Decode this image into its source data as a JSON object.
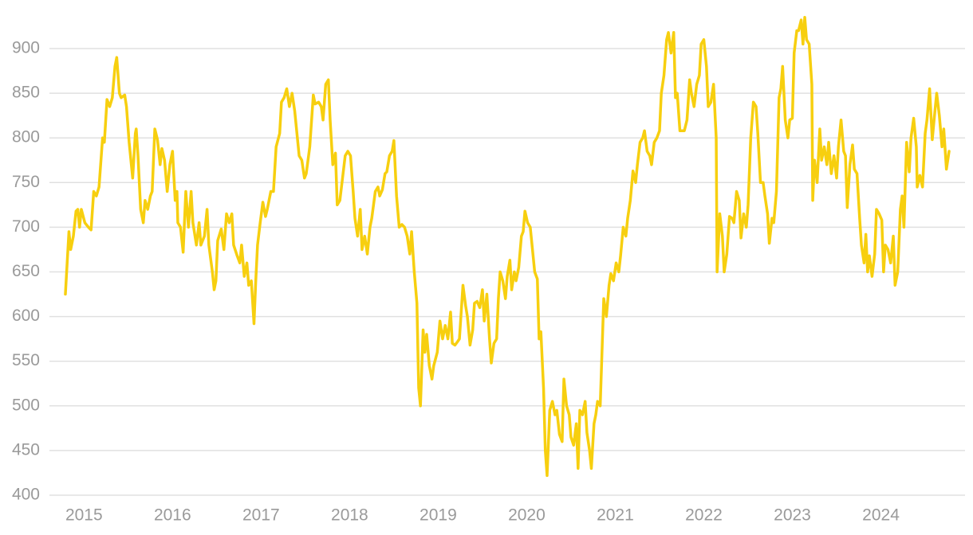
{
  "chart_data": {
    "type": "line",
    "x": [
      2014.79,
      2014.83,
      2014.85,
      2014.88,
      2014.91,
      2014.93,
      2014.95,
      2014.97,
      2015.01,
      2015.05,
      2015.08,
      2015.11,
      2015.14,
      2015.17,
      2015.21,
      2015.23,
      2015.26,
      2015.29,
      2015.32,
      2015.35,
      2015.37,
      2015.4,
      2015.42,
      2015.46,
      2015.48,
      2015.51,
      2015.55,
      2015.58,
      2015.59,
      2015.61,
      2015.64,
      2015.67,
      2015.69,
      2015.72,
      2015.75,
      2015.77,
      2015.8,
      2015.83,
      2015.86,
      2015.88,
      2015.91,
      2015.94,
      2015.97,
      2016.0,
      2016.03,
      2016.05,
      2016.06,
      2016.09,
      2016.12,
      2016.15,
      2016.18,
      2016.21,
      2016.23,
      2016.27,
      2016.3,
      2016.32,
      2016.36,
      2016.39,
      2016.41,
      2016.45,
      2016.47,
      2016.49,
      2016.51,
      2016.55,
      2016.58,
      2016.61,
      2016.64,
      2016.67,
      2016.69,
      2016.73,
      2016.76,
      2016.78,
      2016.81,
      2016.84,
      2016.86,
      2016.89,
      2016.92,
      2016.94,
      2016.96,
      2016.99,
      2017.02,
      2017.05,
      2017.07,
      2017.11,
      2017.14,
      2017.17,
      2017.21,
      2017.23,
      2017.26,
      2017.29,
      2017.32,
      2017.35,
      2017.38,
      2017.41,
      2017.43,
      2017.46,
      2017.49,
      2017.51,
      2017.55,
      2017.59,
      2017.61,
      2017.65,
      2017.68,
      2017.7,
      2017.73,
      2017.76,
      2017.78,
      2017.81,
      2017.84,
      2017.86,
      2017.89,
      2017.92,
      2017.95,
      2017.98,
      2018.01,
      2018.04,
      2018.06,
      2018.09,
      2018.12,
      2018.14,
      2018.17,
      2018.2,
      2018.23,
      2018.25,
      2018.29,
      2018.32,
      2018.34,
      2018.37,
      2018.4,
      2018.42,
      2018.45,
      2018.48,
      2018.5,
      2018.53,
      2018.56,
      2018.59,
      2018.62,
      2018.65,
      2018.68,
      2018.7,
      2018.73,
      2018.76,
      2018.78,
      2018.8,
      2018.83,
      2018.85,
      2018.87,
      2018.9,
      2018.93,
      2018.95,
      2018.99,
      2019.02,
      2019.05,
      2019.08,
      2019.11,
      2019.14,
      2019.16,
      2019.19,
      2019.22,
      2019.24,
      2019.28,
      2019.31,
      2019.33,
      2019.36,
      2019.39,
      2019.41,
      2019.44,
      2019.47,
      2019.5,
      2019.52,
      2019.55,
      2019.58,
      2019.6,
      2019.63,
      2019.66,
      2019.68,
      2019.7,
      2019.73,
      2019.76,
      2019.78,
      2019.81,
      2019.83,
      2019.86,
      2019.88,
      2019.91,
      2019.94,
      2019.96,
      2019.98,
      2020.01,
      2020.04,
      2020.06,
      2020.09,
      2020.12,
      2020.14,
      2020.16,
      2020.19,
      2020.21,
      2020.23,
      2020.26,
      2020.29,
      2020.32,
      2020.34,
      2020.37,
      2020.4,
      2020.42,
      2020.45,
      2020.48,
      2020.5,
      2020.53,
      2020.56,
      2020.58,
      2020.6,
      2020.63,
      2020.66,
      2020.68,
      2020.71,
      2020.73,
      2020.76,
      2020.78,
      2020.8,
      2020.83,
      2020.86,
      2020.87,
      2020.9,
      2020.93,
      2020.95,
      2020.98,
      2021.01,
      2021.04,
      2021.06,
      2021.09,
      2021.12,
      2021.14,
      2021.17,
      2021.2,
      2021.23,
      2021.25,
      2021.28,
      2021.31,
      2021.33,
      2021.36,
      2021.39,
      2021.41,
      2021.44,
      2021.47,
      2021.5,
      2021.52,
      2021.55,
      2021.58,
      2021.6,
      2021.63,
      2021.66,
      2021.68,
      2021.7,
      2021.73,
      2021.76,
      2021.78,
      2021.81,
      2021.84,
      2021.86,
      2021.89,
      2021.92,
      2021.95,
      2021.97,
      2022.0,
      2022.03,
      2022.05,
      2022.08,
      2022.11,
      2022.14,
      2022.15,
      2022.18,
      2022.21,
      2022.23,
      2022.26,
      2022.29,
      2022.32,
      2022.34,
      2022.37,
      2022.4,
      2022.42,
      2022.45,
      2022.48,
      2022.5,
      2022.53,
      2022.56,
      2022.59,
      2022.61,
      2022.64,
      2022.67,
      2022.69,
      2022.72,
      2022.74,
      2022.77,
      2022.79,
      2022.82,
      2022.85,
      2022.87,
      2022.89,
      2022.92,
      2022.95,
      2022.97,
      2023.0,
      2023.02,
      2023.05,
      2023.07,
      2023.1,
      2023.12,
      2023.14,
      2023.16,
      2023.19,
      2023.22,
      2023.23,
      2023.25,
      2023.28,
      2023.31,
      2023.33,
      2023.36,
      2023.39,
      2023.41,
      2023.44,
      2023.47,
      2023.5,
      2023.52,
      2023.55,
      2023.58,
      2023.6,
      2023.62,
      2023.65,
      2023.68,
      2023.7,
      2023.73,
      2023.76,
      2023.78,
      2023.81,
      2023.83,
      2023.85,
      2023.87,
      2023.9,
      2023.93,
      2023.95,
      2023.98,
      2024.01,
      2024.03,
      2024.05,
      2024.08,
      2024.11,
      2024.14,
      2024.16,
      2024.19,
      2024.22,
      2024.24,
      2024.26,
      2024.29,
      2024.32,
      2024.34,
      2024.37,
      2024.4,
      2024.41,
      2024.44,
      2024.47,
      2024.5,
      2024.52,
      2024.55,
      2024.58,
      2024.61,
      2024.63,
      2024.66,
      2024.69,
      2024.71,
      2024.74,
      2024.77
    ],
    "series": [
      {
        "color": "#f7cf0f",
        "values": [
          625,
          695,
          675,
          690,
          718,
          720,
          700,
          720,
          705,
          700,
          697,
          740,
          735,
          745,
          800,
          795,
          843,
          835,
          845,
          880,
          890,
          850,
          845,
          848,
          835,
          795,
          755,
          805,
          810,
          780,
          720,
          705,
          730,
          720,
          735,
          740,
          810,
          798,
          770,
          788,
          775,
          740,
          770,
          785,
          730,
          740,
          705,
          700,
          672,
          740,
          700,
          740,
          705,
          680,
          705,
          680,
          690,
          720,
          680,
          650,
          630,
          640,
          685,
          698,
          675,
          715,
          705,
          715,
          680,
          668,
          660,
          680,
          645,
          660,
          635,
          640,
          592,
          640,
          680,
          705,
          728,
          712,
          720,
          740,
          740,
          790,
          805,
          840,
          845,
          855,
          835,
          850,
          830,
          800,
          780,
          775,
          755,
          760,
          790,
          848,
          838,
          840,
          835,
          820,
          860,
          865,
          820,
          770,
          783,
          725,
          730,
          755,
          780,
          785,
          780,
          740,
          710,
          690,
          720,
          675,
          690,
          670,
          700,
          710,
          740,
          745,
          735,
          742,
          760,
          762,
          780,
          785,
          797,
          735,
          700,
          703,
          700,
          690,
          670,
          695,
          650,
          615,
          520,
          500,
          585,
          560,
          580,
          545,
          530,
          545,
          560,
          595,
          575,
          590,
          575,
          605,
          570,
          568,
          572,
          575,
          635,
          612,
          600,
          568,
          585,
          615,
          617,
          610,
          630,
          595,
          625,
          575,
          548,
          570,
          575,
          620,
          650,
          640,
          620,
          645,
          663,
          630,
          650,
          640,
          655,
          690,
          695,
          718,
          705,
          700,
          680,
          650,
          642,
          575,
          583,
          520,
          450,
          422,
          495,
          505,
          490,
          495,
          468,
          460,
          530,
          500,
          490,
          465,
          456,
          480,
          430,
          495,
          490,
          505,
          470,
          450,
          430,
          480,
          490,
          505,
          500,
          590,
          620,
          600,
          635,
          648,
          640,
          660,
          650,
          668,
          700,
          690,
          710,
          730,
          763,
          750,
          770,
          795,
          800,
          808,
          785,
          780,
          770,
          795,
          800,
          808,
          850,
          870,
          910,
          918,
          895,
          918,
          845,
          850,
          808,
          808,
          808,
          820,
          865,
          850,
          835,
          860,
          870,
          905,
          910,
          880,
          835,
          840,
          860,
          800,
          650,
          715,
          690,
          650,
          670,
          712,
          710,
          705,
          740,
          730,
          688,
          715,
          700,
          725,
          800,
          840,
          835,
          805,
          750,
          750,
          735,
          715,
          682,
          710,
          705,
          740,
          845,
          855,
          880,
          820,
          800,
          820,
          822,
          895,
          920,
          920,
          932,
          905,
          935,
          910,
          905,
          860,
          730,
          775,
          750,
          810,
          775,
          790,
          770,
          795,
          760,
          780,
          755,
          790,
          820,
          785,
          780,
          722,
          770,
          792,
          765,
          760,
          710,
          680,
          660,
          692,
          650,
          668,
          645,
          670,
          720,
          715,
          708,
          650,
          680,
          675,
          660,
          690,
          635,
          650,
          720,
          735,
          700,
          795,
          762,
          800,
          822,
          790,
          745,
          758,
          745,
          805,
          820,
          855,
          798,
          830,
          850,
          825,
          790,
          810,
          765,
          785
        ]
      }
    ],
    "xlim": [
      2014.61,
      2024.95
    ],
    "xticks": [
      2015,
      2016,
      2017,
      2018,
      2019,
      2020,
      2021,
      2022,
      2023,
      2024
    ],
    "ylim": [
      400,
      945
    ],
    "yticks": [
      400,
      450,
      500,
      550,
      600,
      650,
      700,
      750,
      800,
      850,
      900
    ],
    "grid": true
  }
}
